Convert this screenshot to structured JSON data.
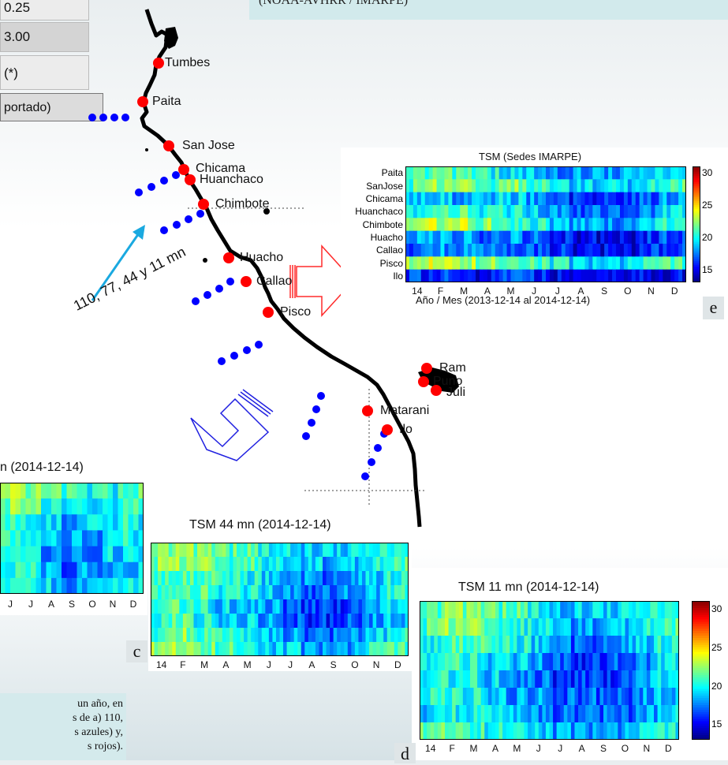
{
  "top_left": {
    "value1": "0.25",
    "value2": "3.00",
    "note": "(*)",
    "reported": "portado)"
  },
  "top_header": "(NOAA-AVHRR / IMARPE)",
  "map": {
    "cities": [
      "Tumbes",
      "Paita",
      "San Jose",
      "Chicama",
      "Huanchaco",
      "Chimbote",
      "Huacho",
      "Callao",
      "Pisco",
      "Ram",
      "Puno",
      "Juli",
      "Matarani",
      "Ilo"
    ],
    "distance_label": "110, 77, 44 y 11 mn",
    "colors": {
      "coast": "#000000",
      "station": "#ff0000",
      "offshore": "#0000ff",
      "arrow": "#1aa9e0"
    }
  },
  "bottom_text": {
    "line1": "un año, en",
    "line2": "s de a) 110,",
    "line3": "s azules) y,",
    "line4": "s rojos)."
  },
  "chart_data": [
    {
      "id": "e",
      "type": "heatmap",
      "title": "TSM (Sedes IMARPE)",
      "xlabel": "Año / Mes (2013-12-14 al 2014-12-14)",
      "x_ticks": [
        "14",
        "F",
        "M",
        "A",
        "M",
        "J",
        "J",
        "A",
        "S",
        "O",
        "N",
        "D"
      ],
      "rows": [
        "Paita",
        "SanJose",
        "Chicama",
        "Huanchaco",
        "Chimbote",
        "Huacho",
        "Callao",
        "Pisco",
        "Ilo"
      ],
      "monthly_values": [
        [
          21,
          21,
          21,
          20,
          19,
          19,
          18,
          18,
          18,
          18,
          19,
          20
        ],
        [
          21,
          22,
          22,
          21,
          22,
          21,
          20,
          19,
          19,
          19,
          20,
          21
        ],
        [
          19,
          19,
          18,
          18,
          19,
          18,
          17,
          16,
          16,
          16,
          17,
          18
        ],
        [
          20,
          21,
          21,
          20,
          20,
          19,
          18,
          17,
          17,
          17,
          18,
          19
        ],
        [
          22,
          23,
          23,
          22,
          21,
          20,
          19,
          18,
          18,
          18,
          19,
          20
        ],
        [
          18,
          18,
          18,
          17,
          18,
          17,
          16,
          15,
          15,
          15,
          16,
          17
        ],
        [
          17,
          18,
          18,
          17,
          17,
          17,
          16,
          15,
          15,
          15,
          16,
          16
        ],
        [
          22,
          24,
          23,
          22,
          21,
          21,
          20,
          19,
          19,
          19,
          20,
          21
        ],
        [
          16,
          16,
          16,
          15,
          16,
          16,
          15,
          15,
          15,
          15,
          15,
          15
        ]
      ],
      "colorbar": {
        "ticks": [
          30,
          25,
          20,
          15
        ],
        "range": [
          13,
          31
        ],
        "colormap": "jet"
      },
      "panel_letter": "e"
    },
    {
      "id": "b",
      "type": "heatmap",
      "title_partial": "n (2014-12-14)",
      "x_ticks": [
        "J",
        "J",
        "A",
        "S",
        "O",
        "N",
        "D"
      ],
      "monthly_values": [
        [
          23,
          22,
          21,
          21,
          20,
          20,
          21
        ],
        [
          22,
          21,
          20,
          19,
          19,
          20,
          21
        ],
        [
          21,
          20,
          19,
          18,
          19,
          19,
          20
        ],
        [
          21,
          20,
          19,
          18,
          18,
          19,
          20
        ],
        [
          20,
          19,
          18,
          17,
          18,
          19,
          20
        ],
        [
          20,
          20,
          18,
          17,
          18,
          18,
          19
        ],
        [
          21,
          20,
          19,
          18,
          18,
          19,
          20
        ]
      ]
    },
    {
      "id": "c",
      "type": "heatmap",
      "title": "TSM 44 mn (2014-12-14)",
      "x_ticks": [
        "14",
        "F",
        "M",
        "A",
        "M",
        "J",
        "J",
        "A",
        "S",
        "O",
        "N",
        "D"
      ],
      "monthly_values": [
        [
          22,
          22,
          22,
          21,
          21,
          20,
          20,
          19,
          19,
          19,
          20,
          21
        ],
        [
          22,
          22,
          22,
          21,
          21,
          20,
          19,
          19,
          18,
          19,
          20,
          21
        ],
        [
          21,
          21,
          21,
          20,
          20,
          19,
          18,
          18,
          17,
          18,
          19,
          20
        ],
        [
          21,
          21,
          21,
          20,
          20,
          19,
          18,
          17,
          17,
          18,
          19,
          20
        ],
        [
          20,
          21,
          20,
          19,
          19,
          18,
          17,
          16,
          16,
          17,
          18,
          19
        ],
        [
          20,
          21,
          20,
          19,
          19,
          18,
          17,
          16,
          16,
          17,
          18,
          19
        ],
        [
          21,
          22,
          21,
          20,
          20,
          19,
          18,
          17,
          17,
          18,
          19,
          20
        ],
        [
          22,
          23,
          22,
          21,
          20,
          19,
          19,
          18,
          18,
          18,
          20,
          21
        ]
      ],
      "panel_letter": "c"
    },
    {
      "id": "d",
      "type": "heatmap",
      "title": "TSM 11 mn (2014-12-14)",
      "x_ticks": [
        "14",
        "F",
        "M",
        "A",
        "M",
        "J",
        "J",
        "A",
        "S",
        "O",
        "N",
        "D"
      ],
      "monthly_values": [
        [
          21,
          22,
          22,
          21,
          21,
          20,
          19,
          19,
          19,
          19,
          20,
          21
        ],
        [
          21,
          22,
          22,
          21,
          20,
          20,
          19,
          18,
          18,
          19,
          20,
          21
        ],
        [
          20,
          21,
          21,
          20,
          20,
          19,
          18,
          17,
          17,
          18,
          19,
          20
        ],
        [
          20,
          21,
          20,
          19,
          19,
          18,
          17,
          16,
          16,
          17,
          18,
          19
        ],
        [
          19,
          20,
          20,
          19,
          18,
          17,
          16,
          16,
          16,
          17,
          18,
          19
        ],
        [
          20,
          20,
          20,
          19,
          18,
          18,
          17,
          17,
          17,
          17,
          18,
          19
        ],
        [
          19,
          20,
          20,
          19,
          19,
          18,
          17,
          17,
          17,
          17,
          18,
          19
        ],
        [
          21,
          22,
          21,
          20,
          20,
          19,
          18,
          18,
          18,
          18,
          19,
          20
        ]
      ],
      "colorbar": {
        "ticks": [
          30,
          25,
          20,
          15
        ],
        "range": [
          13,
          31
        ],
        "colormap": "jet"
      },
      "panel_letter": "d"
    }
  ]
}
